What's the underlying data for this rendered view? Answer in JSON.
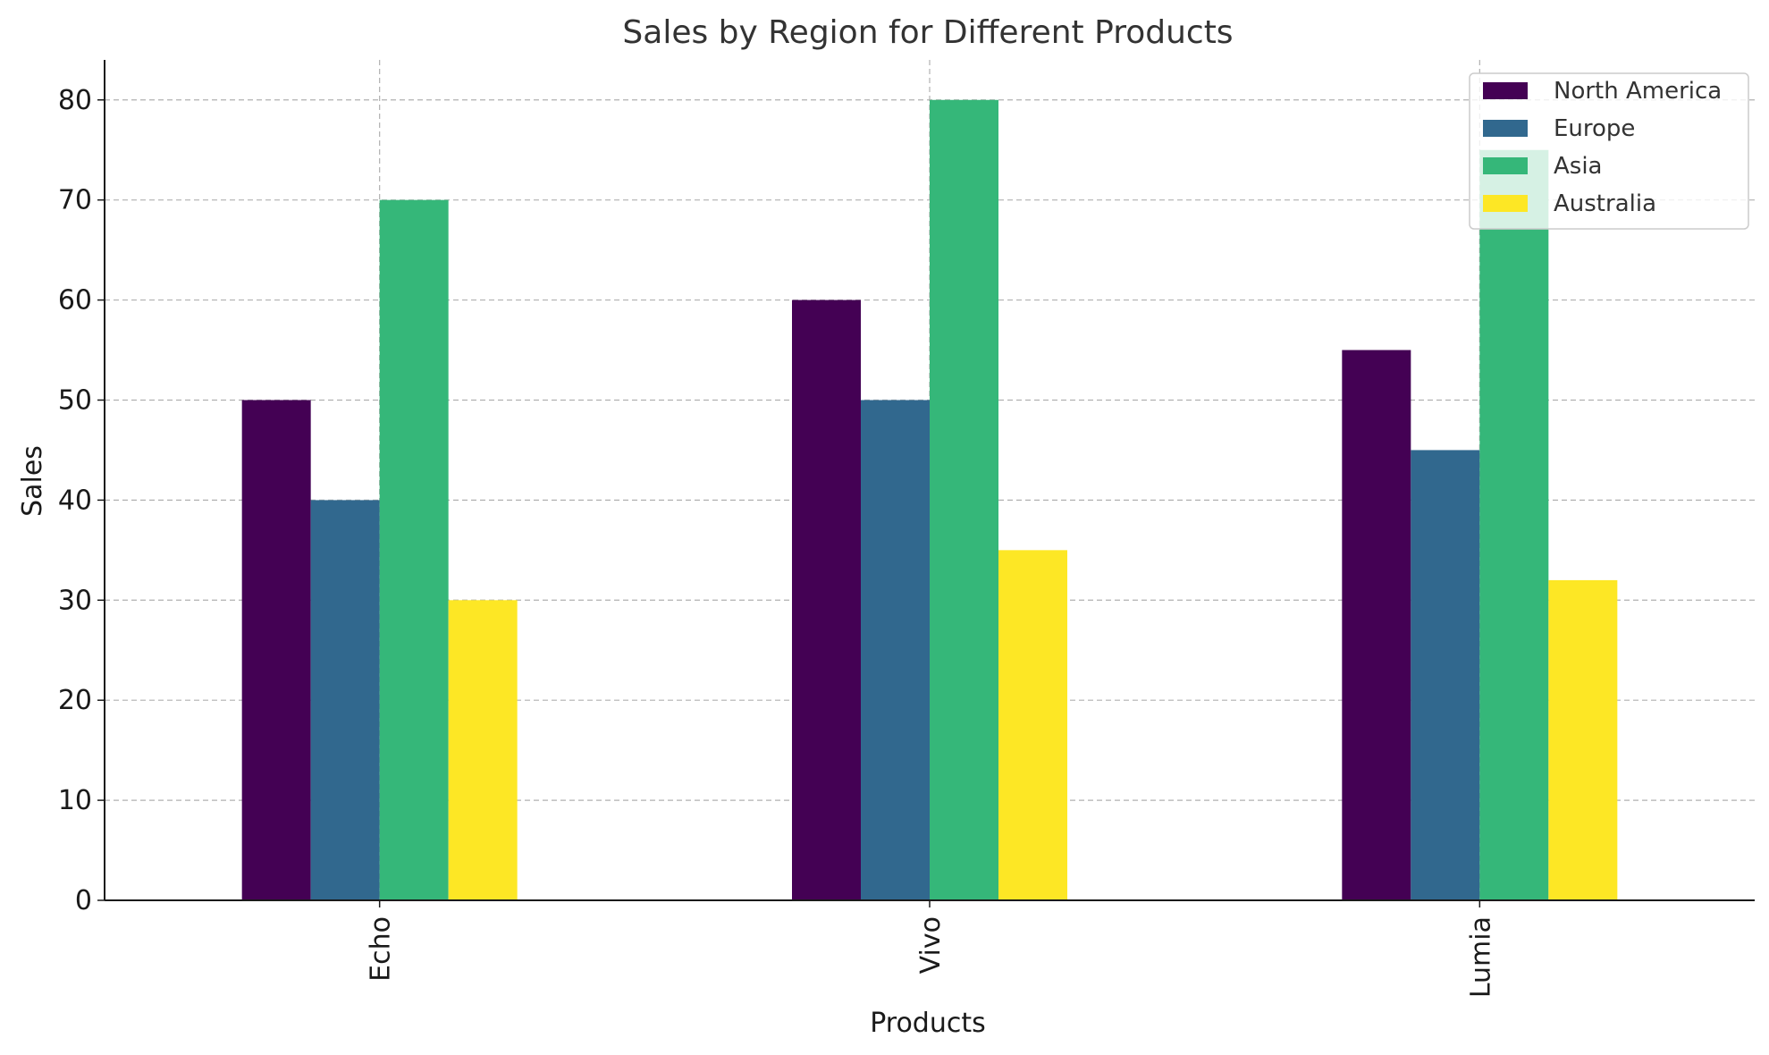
{
  "chart_data": {
    "type": "bar",
    "title": "Sales by Region for Different Products",
    "xlabel": "Products",
    "ylabel": "Sales",
    "categories": [
      "Echo",
      "Vivo",
      "Lumia"
    ],
    "series": [
      {
        "name": "North America",
        "values": [
          50,
          60,
          55
        ],
        "color": "#440154"
      },
      {
        "name": "Europe",
        "values": [
          40,
          50,
          45
        ],
        "color": "#31688e"
      },
      {
        "name": "Asia",
        "values": [
          70,
          80,
          75
        ],
        "color": "#35b779"
      },
      {
        "name": "Australia",
        "values": [
          30,
          35,
          32
        ],
        "color": "#fde725"
      }
    ],
    "ylim": [
      0,
      84
    ],
    "yticks": [
      "0",
      "10",
      "20",
      "30",
      "40",
      "50",
      "60",
      "70",
      "80"
    ],
    "grid": true,
    "legend_position": "top-right"
  }
}
